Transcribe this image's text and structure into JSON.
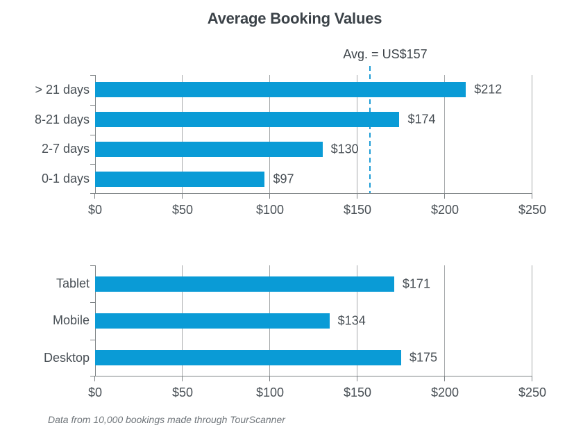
{
  "title": "Average Booking Values",
  "footer": "Data from 10,000 bookings made through TourScanner",
  "axis": {
    "min": 0,
    "max": 250,
    "tick_values": [
      0,
      50,
      100,
      150,
      200,
      250
    ],
    "tick_labels": [
      "$0",
      "$50",
      "$100",
      "$150",
      "$200",
      "$250"
    ]
  },
  "colors": {
    "bar": "#0A9BD6",
    "avg_line": "#1E9CD6",
    "grid": "#A5A8AA",
    "axis": "#7E8386",
    "title_text": "#3B4248",
    "label_text": "#484F55",
    "footer_text": "#71777C"
  },
  "chart_data": [
    {
      "type": "bar",
      "orientation": "horizontal",
      "title": "Average Booking Values",
      "group": "booking-window",
      "categories": [
        "> 21 days",
        "8-21 days",
        "2-7 days",
        "0-1 days"
      ],
      "values": [
        212,
        174,
        130,
        97
      ],
      "value_labels": [
        "$212",
        "$174",
        "$130",
        "$97"
      ],
      "xlim": [
        0,
        250
      ],
      "grid": true,
      "legend": "none",
      "avg_line": {
        "value": 157,
        "label": "Avg. = US$157"
      }
    },
    {
      "type": "bar",
      "orientation": "horizontal",
      "group": "device",
      "categories": [
        "Tablet",
        "Mobile",
        "Desktop"
      ],
      "values": [
        171,
        134,
        175
      ],
      "value_labels": [
        "$171",
        "$134",
        "$175"
      ],
      "xlim": [
        0,
        250
      ],
      "grid": true,
      "legend": "none"
    }
  ]
}
